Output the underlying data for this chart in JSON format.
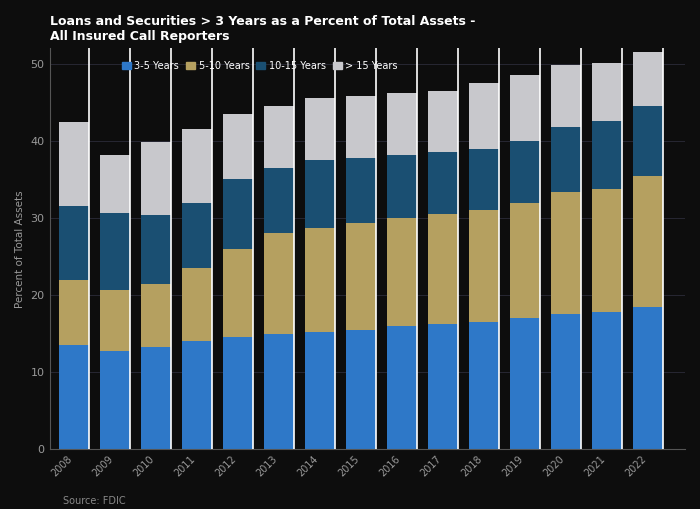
{
  "title_line1": "Loans and Securities > 3 Years as a Percent of Total Assets -",
  "title_line2": "All Insured Call Reporters",
  "ylabel": "Percent of Total Assets",
  "source": "Source: FDIC",
  "years": [
    2008,
    2009,
    2010,
    2011,
    2012,
    2013,
    2014,
    2015,
    2016,
    2017,
    2018,
    2019,
    2020,
    2021,
    2022
  ],
  "legend_labels": [
    "3-5 Years",
    "5-10 Years",
    "10-15 Years",
    "> 15 Years"
  ],
  "colors": [
    "#2e78c8",
    "#b5a060",
    "#1a4f72",
    "#c8c8cc"
  ],
  "s1": [
    13.5,
    12.8,
    13.2,
    14.0,
    14.5,
    15.0,
    15.2,
    15.5,
    16.0,
    16.3,
    16.5,
    17.0,
    17.5,
    17.8,
    18.5
  ],
  "s2": [
    8.5,
    7.8,
    8.2,
    9.5,
    11.5,
    13.0,
    13.5,
    13.8,
    14.0,
    14.2,
    14.5,
    15.0,
    15.8,
    16.0,
    17.0
  ],
  "s3": [
    9.5,
    10.0,
    9.0,
    8.5,
    9.0,
    8.5,
    8.8,
    8.5,
    8.2,
    8.0,
    8.0,
    8.0,
    8.5,
    8.8,
    9.0
  ],
  "s4": [
    11.0,
    7.5,
    9.5,
    9.5,
    8.5,
    8.0,
    8.0,
    8.0,
    8.0,
    8.0,
    8.5,
    8.5,
    8.0,
    7.5,
    7.0
  ],
  "ylim": [
    0,
    52
  ],
  "yticks": [
    0,
    10,
    20,
    30,
    40,
    50
  ],
  "background_color": "#0d0d0d",
  "title_color": "#ffffff",
  "tick_color": "#999999"
}
